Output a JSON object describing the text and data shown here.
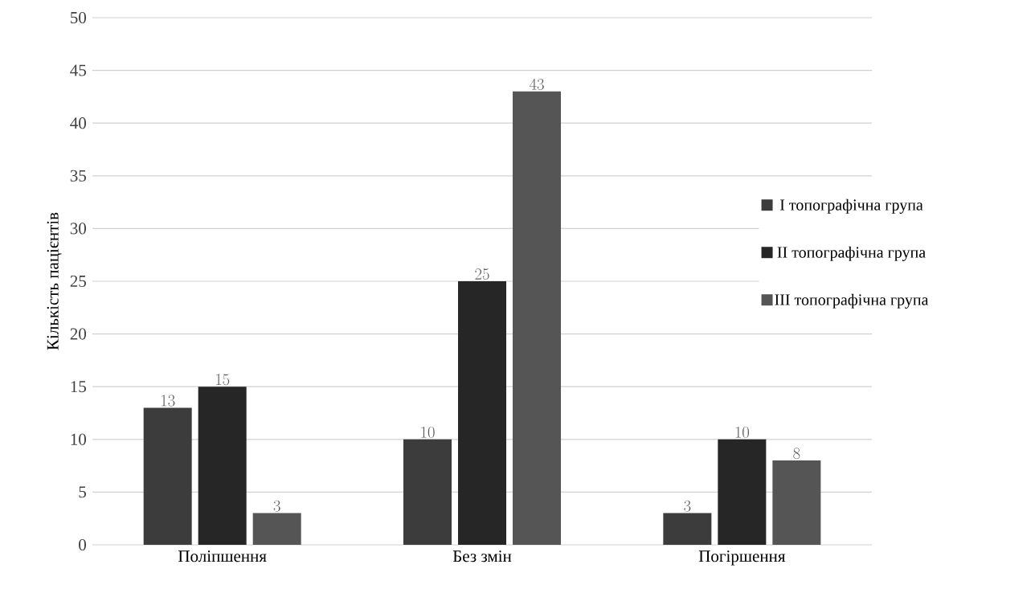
{
  "chart_data": {
    "type": "bar",
    "ylabel": "Кількість пацієнтів",
    "categories": [
      "Поліпшення",
      "Без змін",
      "Погіршення"
    ],
    "series": [
      {
        "name": "I топографічна група",
        "color": "#3c3c3c",
        "values": [
          13,
          10,
          3
        ]
      },
      {
        "name": "II топографічна група",
        "color": "#262626",
        "values": [
          15,
          25,
          10
        ]
      },
      {
        "name": "III топографічна група",
        "color": "#555555",
        "values": [
          3,
          43,
          8
        ]
      }
    ],
    "ylim": [
      0,
      50
    ],
    "yticks": [
      0,
      5,
      10,
      15,
      20,
      25,
      30,
      35,
      40,
      45,
      50
    ],
    "grid": "y",
    "legend": "right",
    "data_labels": true
  }
}
